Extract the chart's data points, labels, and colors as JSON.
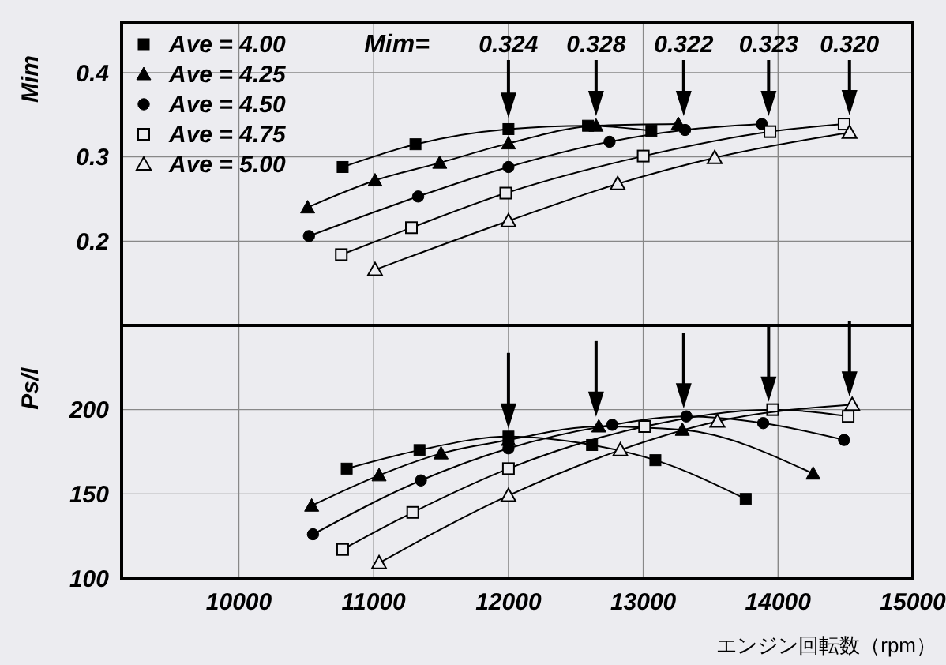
{
  "chart_data": [
    {
      "type": "line",
      "ylabel": "Mim",
      "xlim": [
        9130,
        15000
      ],
      "xticks": [
        10000,
        11000,
        12000,
        13000,
        14000,
        15000
      ],
      "ylim": [
        0.1,
        0.46
      ],
      "yticks": [
        0.2,
        0.3,
        0.4
      ],
      "tick_labels": "y",
      "grid": true,
      "legend": "top left",
      "line_style": "solid",
      "series": [
        {
          "name": "Ave = 4.00",
          "color": "#000000",
          "marker": "square",
          "x": [
            10770,
            11310,
            12000,
            12590,
            13060
          ],
          "values": [
            0.288,
            0.315,
            0.333,
            0.337,
            0.331
          ]
        },
        {
          "name": "Ave = 4.25",
          "color": "#000000",
          "marker": "triangle",
          "x": [
            10510,
            11010,
            11490,
            12000,
            12650,
            13260
          ],
          "values": [
            0.24,
            0.272,
            0.293,
            0.316,
            0.337,
            0.339
          ]
        },
        {
          "name": "Ave = 4.50",
          "color": "#000000",
          "marker": "circle",
          "x": [
            10520,
            11330,
            12000,
            12750,
            13310,
            13880
          ],
          "values": [
            0.206,
            0.253,
            0.288,
            0.318,
            0.332,
            0.339
          ]
        },
        {
          "name": "Ave = 4.75",
          "color": "#000000",
          "marker": "square",
          "x": [
            10760,
            11280,
            11980,
            13000,
            13940,
            14490
          ],
          "values": [
            0.184,
            0.216,
            0.257,
            0.301,
            0.33,
            0.339
          ]
        },
        {
          "name": "Ave = 5.00",
          "color": "#000000",
          "marker": "triangle",
          "x": [
            11010,
            12000,
            12810,
            13530,
            14530
          ],
          "values": [
            0.166,
            0.224,
            0.268,
            0.299,
            0.329
          ]
        }
      ],
      "annotations": [
        "Mim=",
        {
          "text": "0.324",
          "x": 12000,
          "y": 0.337
        },
        {
          "text": "0.328",
          "x": 12650,
          "y": 0.339
        },
        {
          "text": "0.322",
          "x": 13300,
          "y": 0.339
        },
        {
          "text": "0.323",
          "x": 13930,
          "y": 0.339
        },
        {
          "text": "0.320",
          "x": 14530,
          "y": 0.34
        }
      ]
    },
    {
      "type": "line",
      "ylabel": "Ps/l",
      "xlabel": "エンジン回転数（rpm）",
      "xlim": [
        9130,
        15000
      ],
      "xticks": [
        10000,
        11000,
        12000,
        13000,
        14000,
        15000
      ],
      "ylim": [
        100,
        250
      ],
      "yticks": [
        100,
        150,
        200
      ],
      "grid": true,
      "line_style": "solid",
      "series": [
        {
          "color": "#000000",
          "marker": "square",
          "x": [
            10800,
            11340,
            12000,
            12620,
            13090,
            13760
          ],
          "values": [
            165,
            176,
            184,
            179,
            170,
            147
          ]
        },
        {
          "color": "#000000",
          "marker": "triangle",
          "x": [
            10540,
            11040,
            11500,
            12000,
            12670,
            13290,
            14260
          ],
          "values": [
            143,
            161,
            174,
            182,
            190,
            188,
            162
          ]
        },
        {
          "color": "#000000",
          "marker": "circle",
          "x": [
            10550,
            11350,
            12000,
            12770,
            13320,
            13890,
            14490
          ],
          "values": [
            126,
            158,
            177,
            191,
            196,
            192,
            182
          ]
        },
        {
          "color": "#000000",
          "marker": "square",
          "x": [
            10770,
            11290,
            12000,
            13010,
            13960,
            14520
          ],
          "values": [
            117,
            139,
            165,
            190,
            200,
            196
          ]
        },
        {
          "color": "#000000",
          "marker": "triangle",
          "x": [
            11040,
            12000,
            12830,
            13550,
            14550
          ],
          "values": [
            109,
            149,
            176,
            193,
            203
          ]
        }
      ]
    }
  ]
}
